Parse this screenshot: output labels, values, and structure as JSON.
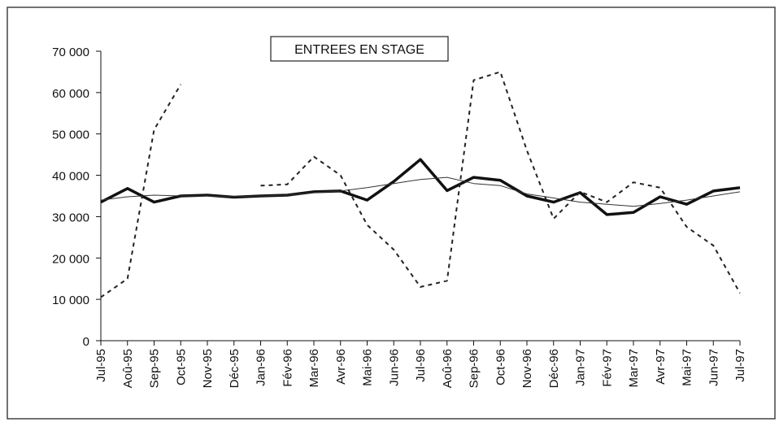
{
  "chart_data": {
    "type": "line",
    "title": "ENTREES EN STAGE",
    "categories": [
      "Jul-95",
      "Aoû-95",
      "Sep-95",
      "Oct-95",
      "Nov-95",
      "Déc-95",
      "Jan-96",
      "Fév-96",
      "Mar-96",
      "Avr-96",
      "Mai-96",
      "Jun-96",
      "Jul-96",
      "Aoû-96",
      "Sep-96",
      "Oct-96",
      "Nov-96",
      "Déc-96",
      "Jan-97",
      "Fév-97",
      "Mar-97",
      "Avr-97",
      "Mai-97",
      "Jun-97",
      "Jul-97"
    ],
    "series": [
      {
        "color": "#111",
        "style": "thick",
        "values": [
          33500,
          36800,
          33500,
          35000,
          35200,
          34700,
          35000,
          35200,
          36000,
          36200,
          34000,
          38500,
          43800,
          36300,
          39500,
          38800,
          35000,
          33500,
          35800,
          30500,
          31000,
          34800,
          33000,
          36200,
          37000
        ]
      },
      {
        "color": "#333",
        "style": "thin",
        "values": [
          34000,
          34800,
          35200,
          35000,
          35000,
          34800,
          35000,
          35200,
          35800,
          36200,
          37000,
          38000,
          39000,
          39500,
          38000,
          37500,
          35500,
          34500,
          33500,
          33000,
          32500,
          33200,
          34000,
          35000,
          36000
        ]
      },
      {
        "color": "#222",
        "style": "dashed",
        "values": [
          10500,
          15000,
          51000,
          62000,
          null,
          null,
          37500,
          37800,
          44500,
          40000,
          28000,
          22000,
          13000,
          14500,
          63000,
          65000,
          46000,
          29500,
          36000,
          33500,
          38300,
          37000,
          27500,
          23000,
          11500
        ]
      }
    ],
    "ylim": [
      0,
      70000
    ],
    "yticks": [
      0,
      {
        "value": 10000,
        "label": "10 000"
      },
      {
        "value": 20000,
        "label": "20 000"
      },
      {
        "value": 30000,
        "label": "30 000"
      },
      {
        "value": 40000,
        "label": "40 000"
      },
      {
        "value": 50000,
        "label": "50 000"
      },
      {
        "value": 60000,
        "label": "60 000"
      },
      {
        "value": 70000,
        "label": "70 000"
      }
    ],
    "grid": false
  }
}
